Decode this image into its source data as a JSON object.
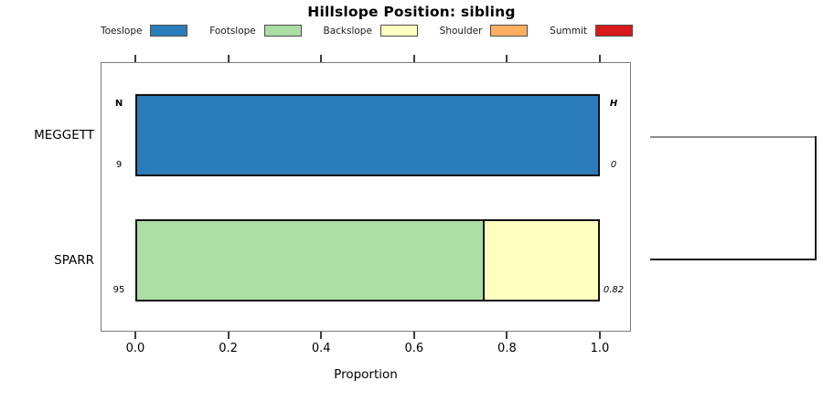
{
  "chart_data": {
    "type": "bar",
    "orientation": "horizontal_stacked",
    "title": "Hillslope Position: sibling",
    "xlabel": "Proportion",
    "xlim": [
      0,
      1
    ],
    "x_ticks": [
      0,
      0.2,
      0.4,
      0.6,
      0.8,
      1
    ],
    "x_tick_labels": [
      "0.0",
      "0.2",
      "0.4",
      "0.6",
      "0.8",
      "1.0"
    ],
    "grid": false,
    "legend_position": "top",
    "legend": [
      {
        "label": "Toeslope",
        "color": "#2b7cba"
      },
      {
        "label": "Footslope",
        "color": "#abdda4"
      },
      {
        "label": "Backslope",
        "color": "#ffffbf"
      },
      {
        "label": "Shoulder",
        "color": "#fdae61"
      },
      {
        "label": "Summit",
        "color": "#d7191c"
      }
    ],
    "column_headers": {
      "n": "N",
      "h": "H"
    },
    "rows": [
      {
        "category": "MEGGETT",
        "n": "9",
        "h": "0",
        "show_headers": true,
        "segments": [
          {
            "name": "Toeslope",
            "value": 1.0
          }
        ]
      },
      {
        "category": "SPARR",
        "n": "95",
        "h": "0.82",
        "show_headers": false,
        "segments": [
          {
            "name": "Footslope",
            "value": 0.75
          },
          {
            "name": "Backslope",
            "value": 0.25
          }
        ]
      }
    ]
  }
}
